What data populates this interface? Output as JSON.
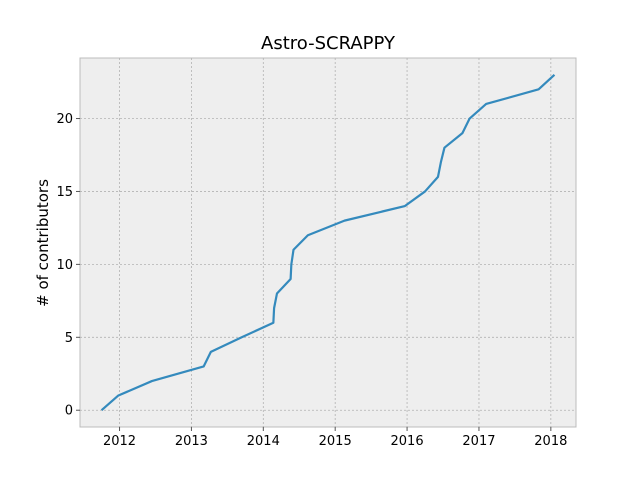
{
  "chart_data": {
    "type": "line",
    "title": "Astro-SCRAPPY",
    "xlabel": "",
    "ylabel": "# of contributors",
    "xlim": [
      2011.45,
      2018.35
    ],
    "ylim": [
      -1.15,
      24.15
    ],
    "grid": true,
    "x_ticks": [
      2012,
      2013,
      2014,
      2015,
      2016,
      2017,
      2018
    ],
    "x_tick_labels": [
      "2012",
      "2013",
      "2014",
      "2015",
      "2016",
      "2017",
      "2018"
    ],
    "y_ticks": [
      0,
      5,
      10,
      15,
      20
    ],
    "y_tick_labels": [
      "0",
      "5",
      "10",
      "15",
      "20"
    ],
    "colors": {
      "line": "#348abd",
      "plot_bg": "#eeeeee",
      "grid": "#b2b2b2"
    },
    "series": [
      {
        "x": [
          2011.75,
          2011.98,
          2012.45,
          2013.17,
          2013.27,
          2013.7,
          2014.14,
          2014.15,
          2014.19,
          2014.38,
          2014.39,
          2014.42,
          2014.62,
          2015.13,
          2015.97,
          2016.25,
          2016.43,
          2016.47,
          2016.52,
          2016.77,
          2016.87,
          2017.1,
          2017.83,
          2018.05
        ],
        "y": [
          0,
          1,
          2,
          3,
          4,
          5,
          6,
          7,
          8,
          9,
          10,
          11,
          12,
          13,
          14,
          15,
          16,
          17,
          18,
          19,
          20,
          21,
          22,
          23
        ]
      }
    ]
  }
}
